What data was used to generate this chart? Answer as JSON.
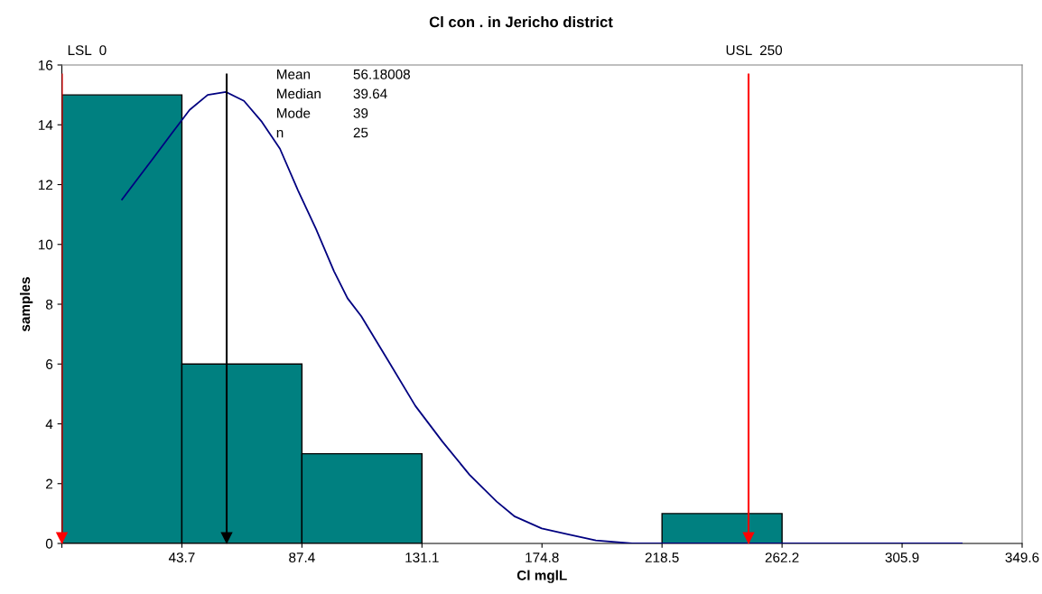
{
  "chart_data": {
    "type": "histogram",
    "title": "Cl con . in Jericho district",
    "xlabel": "Cl mglL",
    "ylabel": "samples",
    "bins": [
      0,
      43.7,
      87.4,
      131.1,
      174.8,
      218.5,
      262.2,
      305.9,
      349.6
    ],
    "values": [
      15,
      6,
      3,
      0,
      0,
      1,
      0,
      0
    ],
    "color": "#008080",
    "series": [
      {
        "type": "line",
        "color": "#000080",
        "x": [
          21.9,
          26.8,
          33.4,
          39.9,
          46.5,
          53.1,
          59.7,
          66.3,
          72.8,
          79.4,
          86.0,
          92.6,
          99.1,
          104.0,
          109.0,
          118.9,
          128.7,
          138.6,
          148.4,
          158.3,
          164.9,
          174.7,
          184.6,
          194.4,
          207.6,
          327.6
        ],
        "values": [
          11.5,
          12.1,
          12.9,
          13.7,
          14.5,
          15.0,
          15.1,
          14.8,
          14.1,
          13.2,
          11.8,
          10.5,
          9.1,
          8.2,
          7.6,
          6.1,
          4.6,
          3.4,
          2.3,
          1.4,
          0.9,
          0.5,
          0.3,
          0.1,
          0,
          0
        ]
      }
    ],
    "xlim": [
      0,
      349.6
    ],
    "xticks": [
      {
        "value": 0,
        "label": null
      },
      43.7,
      87.4,
      131.1,
      174.8,
      218.5,
      262.2,
      305.9,
      349.6
    ],
    "ylim": [
      0,
      16
    ],
    "yticks": [
      0,
      2,
      4,
      6,
      8,
      10,
      12,
      14,
      16
    ],
    "ref_lines": [
      {
        "axis": "x",
        "value": 0,
        "label": "LSL  0",
        "color": "#ff0000"
      },
      {
        "axis": "x",
        "value": 60,
        "color": "#000000"
      },
      {
        "axis": "x",
        "value": 250,
        "label": "USL  250",
        "color": "#ff0000"
      }
    ],
    "annotations": [
      "Mean",
      "56.18008",
      "Median",
      "39.64",
      "Mode",
      "39",
      "n",
      "25"
    ],
    "grid": false,
    "legend": false
  }
}
